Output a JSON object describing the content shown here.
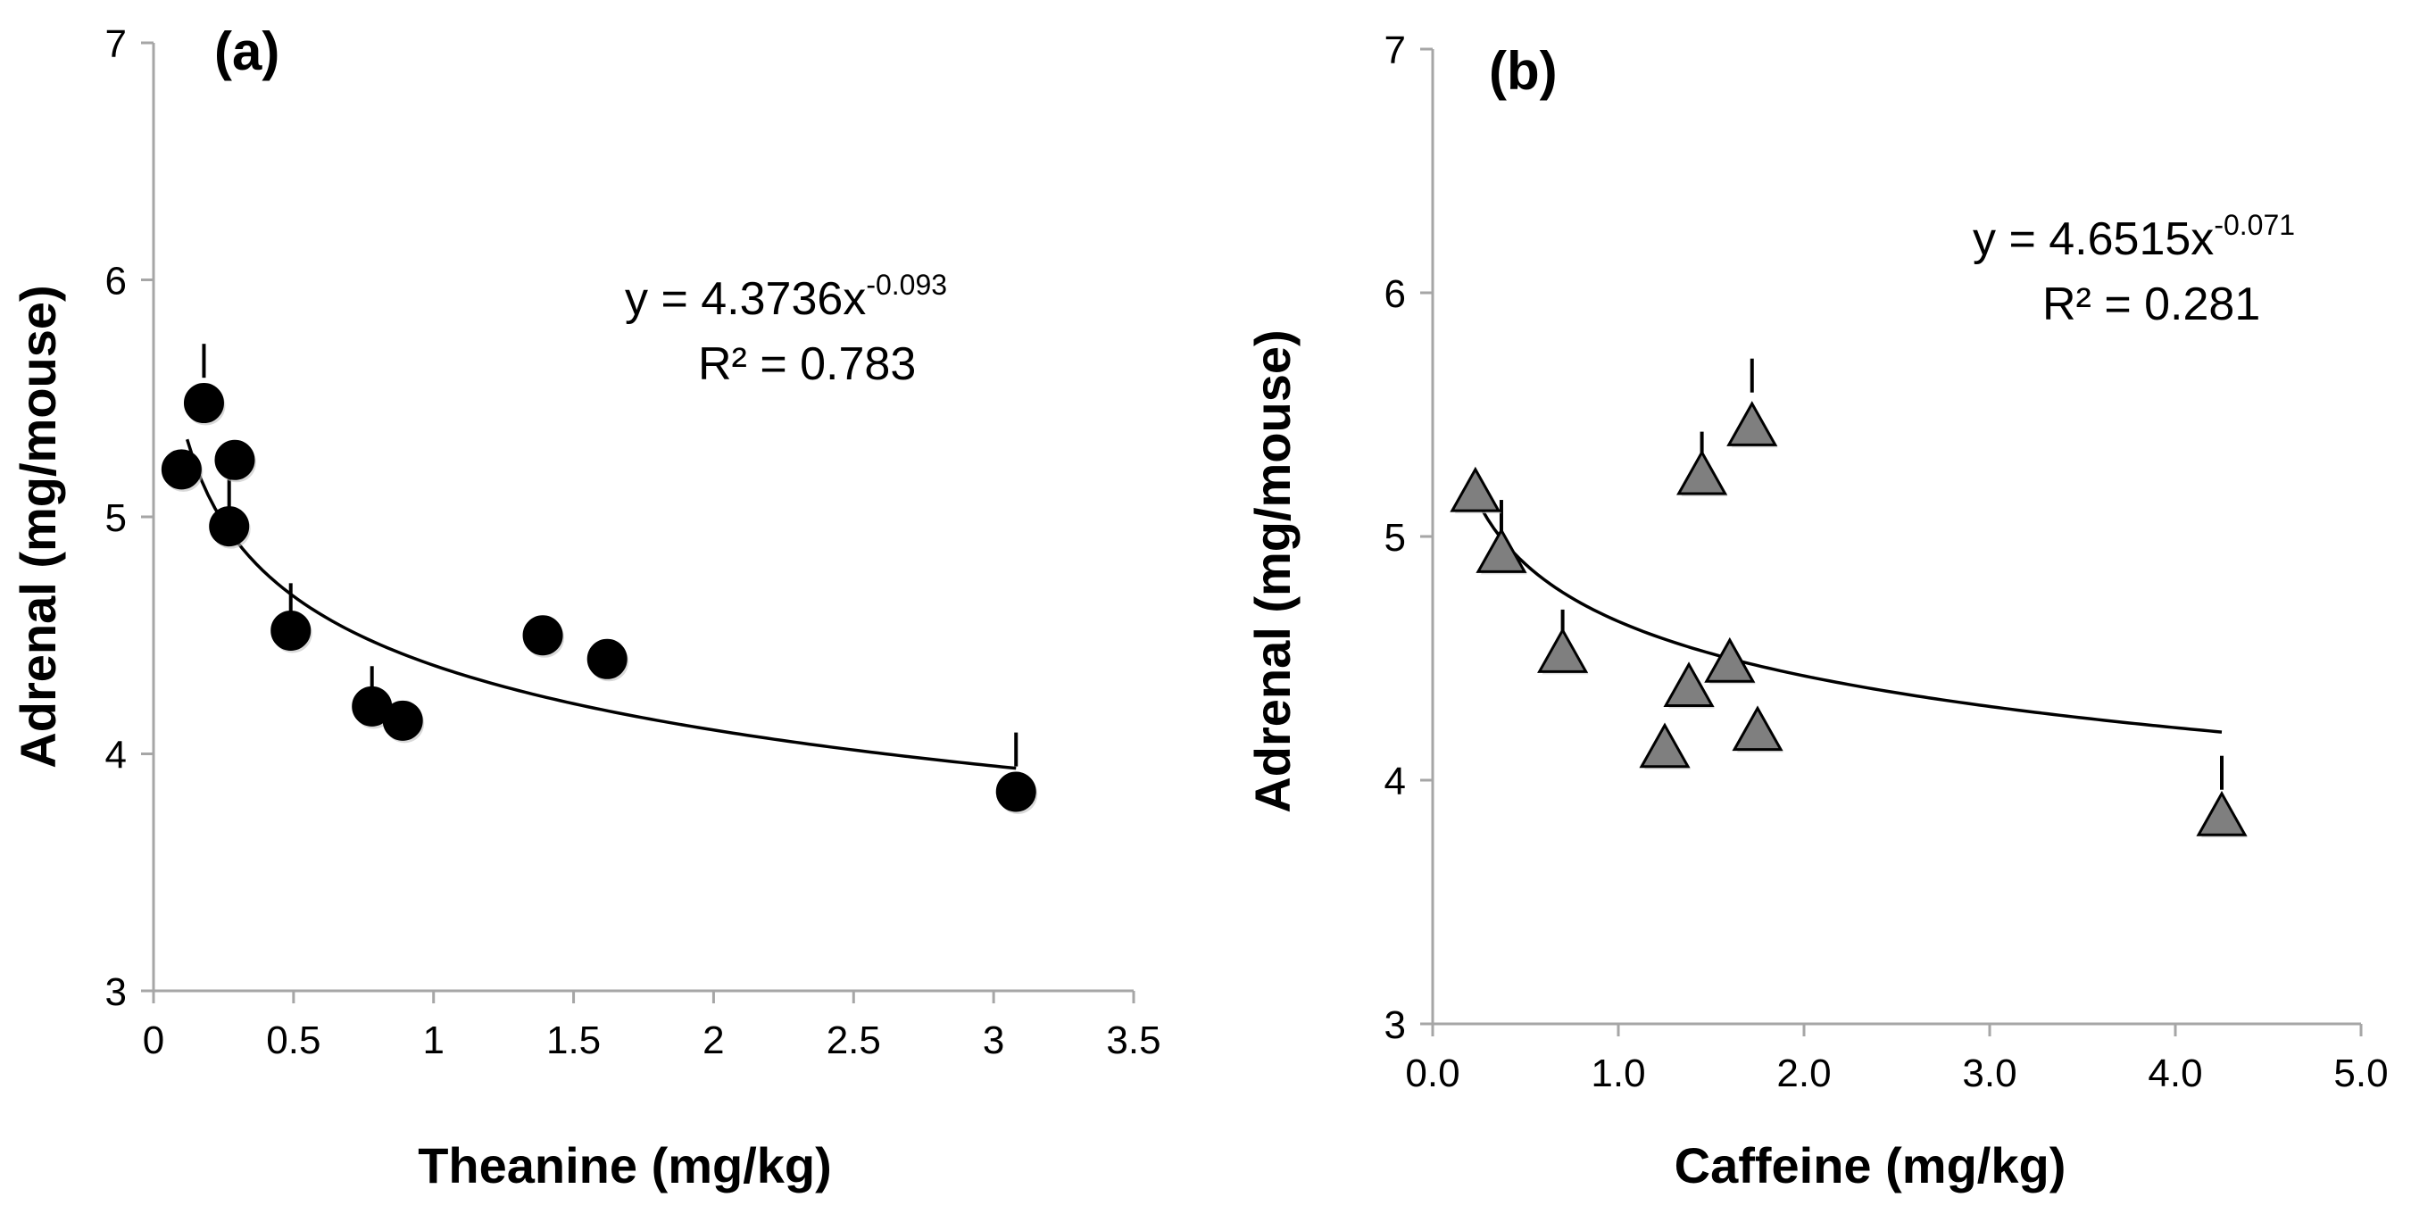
{
  "chart_data": [
    {
      "type": "scatter",
      "panel_label": "(a)",
      "xlabel": "Theanine (mg/kg)",
      "ylabel": "Adrenal (mg/mouse)",
      "xlim": [
        0,
        3.5
      ],
      "ylim": [
        3,
        7
      ],
      "x_ticks": [
        "0",
        "0.5",
        "1",
        "1.5",
        "2",
        "2.5",
        "3",
        "3.5"
      ],
      "y_ticks": [
        "3",
        "4",
        "5",
        "6",
        "7"
      ],
      "marker": "circle",
      "marker_color": "#000000",
      "points": [
        {
          "x": 0.1,
          "y": 5.2
        },
        {
          "x": 0.18,
          "y": 5.48,
          "err": 0.25
        },
        {
          "x": 0.29,
          "y": 5.24
        },
        {
          "x": 0.27,
          "y": 4.96,
          "err": 0.22
        },
        {
          "x": 0.49,
          "y": 4.52,
          "err": 0.2
        },
        {
          "x": 0.78,
          "y": 4.2,
          "err": 0.17
        },
        {
          "x": 0.89,
          "y": 4.14
        },
        {
          "x": 1.39,
          "y": 4.5
        },
        {
          "x": 1.62,
          "y": 4.4
        },
        {
          "x": 3.08,
          "y": 3.84,
          "err": 0.25
        }
      ],
      "trendline": {
        "a": 4.3736,
        "b": -0.093,
        "x_from": 0.12,
        "x_to": 3.08
      },
      "equation": {
        "prefix": "y = 4.3736x",
        "exponent": "-0.093",
        "r2": "R² = 0.783"
      }
    },
    {
      "type": "scatter",
      "panel_label": "(b)",
      "xlabel": "Caffeine (mg/kg)",
      "ylabel": "Adrenal (mg/mouse)",
      "xlim": [
        0,
        5
      ],
      "ylim": [
        3,
        7
      ],
      "x_ticks": [
        "0.0",
        "1.0",
        "2.0",
        "3.0",
        "4.0",
        "5.0"
      ],
      "y_ticks": [
        "3",
        "4",
        "5",
        "6",
        "7"
      ],
      "marker": "triangle",
      "marker_color": "#7f7f7f",
      "points": [
        {
          "x": 0.23,
          "y": 5.18
        },
        {
          "x": 0.37,
          "y": 4.93,
          "err": 0.22
        },
        {
          "x": 0.7,
          "y": 4.52,
          "err": 0.18
        },
        {
          "x": 1.25,
          "y": 4.13
        },
        {
          "x": 1.38,
          "y": 4.38
        },
        {
          "x": 1.45,
          "y": 5.25,
          "err": 0.18
        },
        {
          "x": 1.6,
          "y": 4.48
        },
        {
          "x": 1.72,
          "y": 5.45,
          "err": 0.28
        },
        {
          "x": 1.75,
          "y": 4.2
        },
        {
          "x": 4.25,
          "y": 3.85,
          "err": 0.25
        }
      ],
      "trendline": {
        "a": 4.6515,
        "b": -0.071,
        "x_from": 0.23,
        "x_to": 4.25
      },
      "equation": {
        "prefix": "y = 4.6515x",
        "exponent": "-0.071",
        "r2": "R² = 0.281"
      }
    }
  ]
}
